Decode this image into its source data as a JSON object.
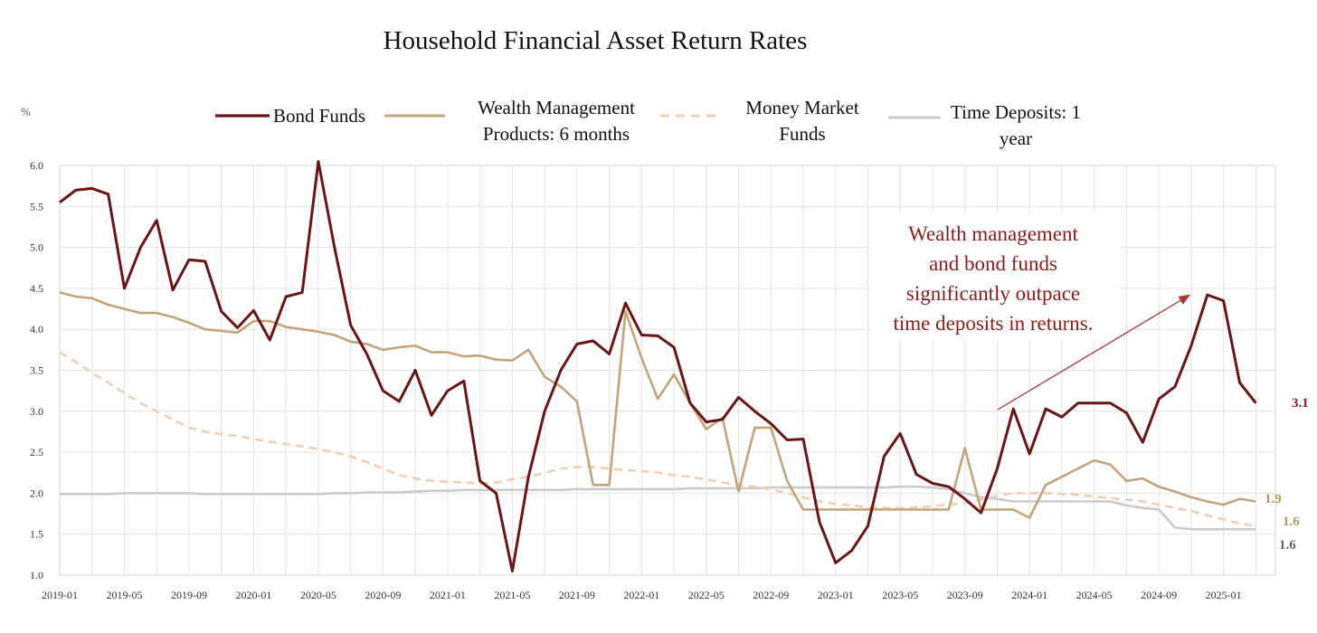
{
  "chart_data": {
    "type": "line",
    "title": "Household Financial Asset Return Rates",
    "y_axis_label": "%",
    "categories": [
      "2019-01",
      null,
      null,
      null,
      "2019-05",
      null,
      null,
      null,
      "2019-09",
      null,
      null,
      null,
      "2020-01",
      null,
      null,
      null,
      "2020-05",
      null,
      null,
      null,
      "2020-09",
      null,
      null,
      null,
      "2021-01",
      null,
      null,
      null,
      "2021-05",
      null,
      null,
      null,
      "2021-09",
      null,
      null,
      null,
      "2022-01",
      null,
      null,
      null,
      "2022-05",
      null,
      null,
      null,
      "2022-09",
      null,
      null,
      null,
      "2023-01",
      null,
      null,
      null,
      "2023-05",
      null,
      null,
      null,
      "2023-09",
      null,
      null,
      null,
      "2024-01",
      null,
      null,
      null,
      "2024-05",
      null,
      null,
      null,
      "2024-09",
      null,
      null,
      null,
      "2025-01",
      null,
      null
    ],
    "ylim": [
      1,
      6
    ],
    "yticks": [
      {
        "value": 1,
        "label": "1.0"
      },
      {
        "value": 1.5,
        "label": "1.5"
      },
      {
        "value": 2,
        "label": "2.0"
      },
      {
        "value": 2.5,
        "label": "2.5"
      },
      {
        "value": 3,
        "label": "3.0"
      },
      {
        "value": 3.5,
        "label": "3.5"
      },
      {
        "value": 4,
        "label": "4.0"
      },
      {
        "value": 4.5,
        "label": "4.5"
      },
      {
        "value": 5,
        "label": "5.0"
      },
      {
        "value": 5.5,
        "label": "5.5"
      },
      {
        "value": 6,
        "label": "6.0"
      }
    ],
    "grid": true,
    "series": [
      {
        "name": "Bond Funds",
        "color": "#6b1414",
        "dash": false,
        "end_label": "3.1",
        "values": [
          5.55,
          5.7,
          5.72,
          5.65,
          4.5,
          5.0,
          5.33,
          4.48,
          4.85,
          4.83,
          4.22,
          4.02,
          4.23,
          3.87,
          4.4,
          4.45,
          6.05,
          5.0,
          4.05,
          3.7,
          3.25,
          3.12,
          3.5,
          2.95,
          3.25,
          3.37,
          2.15,
          2.0,
          1.05,
          2.2,
          3.0,
          3.5,
          3.82,
          3.86,
          3.7,
          4.32,
          3.93,
          3.92,
          3.78,
          3.1,
          2.87,
          2.9,
          3.17,
          3.0,
          2.85,
          2.65,
          2.66,
          1.65,
          1.15,
          1.3,
          1.6,
          2.45,
          2.73,
          2.23,
          2.12,
          2.08,
          1.93,
          1.76,
          2.3,
          3.03,
          2.48,
          3.03,
          2.93,
          3.1,
          3.1,
          3.1,
          2.98,
          2.62,
          3.15,
          3.3,
          3.8,
          4.42,
          4.35,
          3.35,
          3.1
        ]
      },
      {
        "name": "Wealth Management Products: 6 months",
        "color": "#c3a47a",
        "dash": false,
        "end_label": "1.9",
        "values": [
          4.45,
          4.4,
          4.38,
          4.3,
          4.25,
          4.2,
          4.2,
          4.15,
          4.08,
          4.0,
          3.98,
          3.96,
          4.1,
          4.1,
          4.03,
          4.0,
          3.97,
          3.93,
          3.85,
          3.82,
          3.75,
          3.78,
          3.8,
          3.72,
          3.72,
          3.67,
          3.68,
          3.63,
          3.62,
          3.75,
          3.42,
          3.3,
          3.12,
          2.1,
          2.1,
          4.22,
          3.65,
          3.15,
          3.45,
          3.1,
          2.78,
          2.92,
          2.02,
          2.8,
          2.8,
          2.15,
          1.8,
          1.8,
          1.8,
          1.8,
          1.8,
          1.8,
          1.8,
          1.8,
          1.8,
          1.8,
          2.55,
          1.8,
          1.8,
          1.8,
          1.7,
          2.1,
          2.2,
          2.3,
          2.4,
          2.35,
          2.15,
          2.18,
          2.08,
          2.02,
          1.95,
          1.9,
          1.86,
          1.93,
          1.9
        ]
      },
      {
        "name": "Money Market Funds",
        "color": "#f3cdb0",
        "dash": true,
        "end_label": "1.6",
        "values": [
          3.72,
          3.6,
          3.47,
          3.35,
          3.22,
          3.1,
          3.0,
          2.9,
          2.8,
          2.75,
          2.72,
          2.7,
          2.66,
          2.63,
          2.6,
          2.57,
          2.54,
          2.5,
          2.45,
          2.38,
          2.3,
          2.22,
          2.18,
          2.15,
          2.14,
          2.13,
          2.12,
          2.13,
          2.17,
          2.2,
          2.25,
          2.3,
          2.32,
          2.32,
          2.3,
          2.28,
          2.27,
          2.25,
          2.22,
          2.2,
          2.17,
          2.13,
          2.1,
          2.08,
          2.05,
          2.0,
          1.95,
          1.9,
          1.87,
          1.85,
          1.83,
          1.82,
          1.82,
          1.83,
          1.84,
          1.86,
          1.88,
          1.92,
          1.97,
          2.0,
          2.0,
          2.0,
          1.99,
          1.98,
          1.96,
          1.94,
          1.92,
          1.9,
          1.86,
          1.82,
          1.78,
          1.73,
          1.68,
          1.63,
          1.6
        ]
      },
      {
        "name": "Time Deposits: 1 year",
        "color": "#cacaca",
        "dash": false,
        "end_label": "1.6",
        "values": [
          1.99,
          1.99,
          1.99,
          1.99,
          2.0,
          2.0,
          2.0,
          2.0,
          2.0,
          1.99,
          1.99,
          1.99,
          1.99,
          1.99,
          1.99,
          1.99,
          1.99,
          2.0,
          2.0,
          2.01,
          2.01,
          2.01,
          2.02,
          2.03,
          2.03,
          2.04,
          2.04,
          2.04,
          2.04,
          2.04,
          2.04,
          2.04,
          2.05,
          2.05,
          2.05,
          2.05,
          2.05,
          2.05,
          2.05,
          2.06,
          2.06,
          2.06,
          2.06,
          2.06,
          2.07,
          2.07,
          2.07,
          2.07,
          2.07,
          2.07,
          2.07,
          2.07,
          2.08,
          2.08,
          2.07,
          2.05,
          2.0,
          1.95,
          1.93,
          1.9,
          1.9,
          1.9,
          1.9,
          1.9,
          1.9,
          1.9,
          1.85,
          1.82,
          1.8,
          1.58,
          1.56,
          1.56,
          1.56,
          1.56,
          1.56
        ]
      }
    ],
    "annotation": [
      "Wealth management",
      "and bond funds",
      "significantly outpace",
      "time deposits in returns."
    ]
  }
}
